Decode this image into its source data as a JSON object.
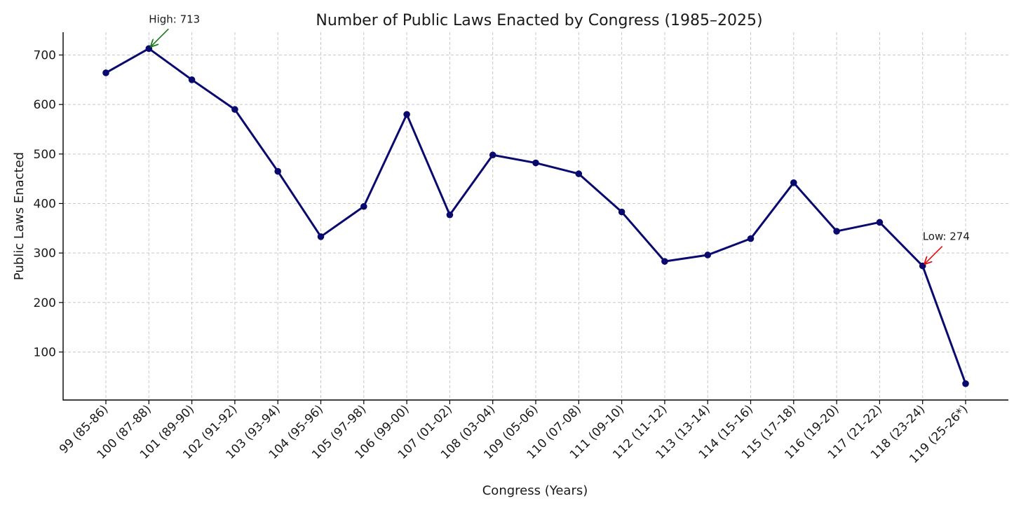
{
  "chart_data": {
    "type": "line",
    "title": "Number of Public Laws Enacted by Congress (1985–2025)",
    "xlabel": "Congress (Years)",
    "ylabel": "Public Laws Enacted",
    "categories": [
      "99 (85-86)",
      "100 (87-88)",
      "101 (89-90)",
      "102 (91-92)",
      "103 (93-94)",
      "104 (95-96)",
      "105 (97-98)",
      "106 (99-00)",
      "107 (01-02)",
      "108 (03-04)",
      "109 (05-06)",
      "110 (07-08)",
      "111 (09-10)",
      "112 (11-12)",
      "113 (13-14)",
      "114 (15-16)",
      "115 (17-18)",
      "116 (19-20)",
      "117 (21-22)",
      "118 (23-24)",
      "119 (25-26*)"
    ],
    "values": [
      664,
      713,
      650,
      590,
      465,
      333,
      394,
      580,
      377,
      498,
      482,
      460,
      383,
      283,
      296,
      329,
      442,
      344,
      362,
      274,
      36
    ],
    "yticks": [
      100,
      200,
      300,
      400,
      500,
      600,
      700
    ],
    "ylim": [
      3,
      746
    ],
    "grid": true,
    "line_color": "#0a0a6e",
    "annotations": [
      {
        "text": "High: 713",
        "point_index": 1,
        "arrow_color": "#1b7a1b"
      },
      {
        "text": "Low: 274",
        "point_index": 19,
        "arrow_color": "#e01010"
      }
    ]
  }
}
